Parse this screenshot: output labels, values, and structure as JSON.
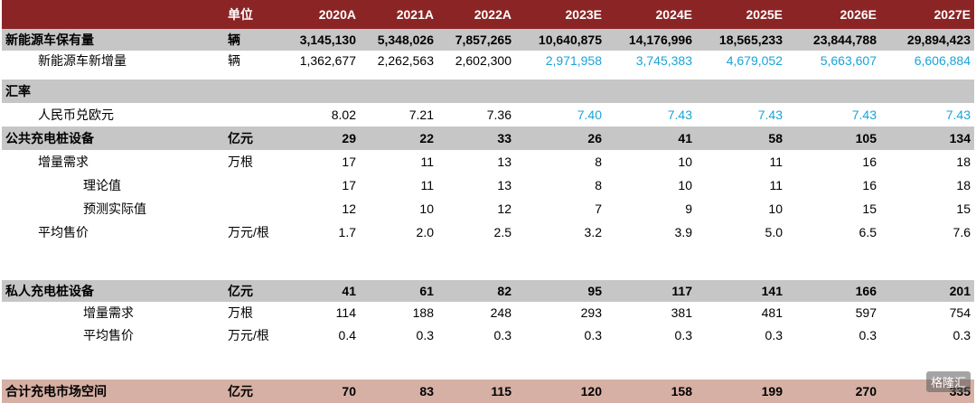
{
  "header": {
    "unit": "单位",
    "years": [
      "2020A",
      "2021A",
      "2022A",
      "2023E",
      "2024E",
      "2025E",
      "2026E",
      "2027E"
    ]
  },
  "rows": {
    "ev_stock": {
      "label": "新能源车保有量",
      "unit": "辆",
      "values": [
        "3,145,130",
        "5,348,026",
        "7,857,265",
        "10,640,875",
        "14,176,996",
        "18,565,233",
        "23,844,788",
        "29,894,423"
      ]
    },
    "ev_new": {
      "label": "新能源车新增量",
      "unit": "辆",
      "values": [
        "1,362,677",
        "2,262,563",
        "2,602,300",
        "2,971,958",
        "3,745,383",
        "4,679,052",
        "5,663,607",
        "6,606,884"
      ]
    },
    "fx": {
      "label": "汇率"
    },
    "cny_eur": {
      "label": "人民币兑欧元",
      "values": [
        "8.02",
        "7.21",
        "7.36",
        "7.40",
        "7.43",
        "7.43",
        "7.43",
        "7.43"
      ]
    },
    "public": {
      "label": "公共充电桩设备",
      "unit": "亿元",
      "values": [
        "29",
        "22",
        "33",
        "26",
        "41",
        "58",
        "105",
        "134"
      ]
    },
    "public_inc": {
      "label": "增量需求",
      "unit": "万根",
      "values": [
        "17",
        "11",
        "13",
        "8",
        "10",
        "11",
        "16",
        "18"
      ]
    },
    "public_theory": {
      "label": "理论值",
      "values": [
        "17",
        "11",
        "13",
        "8",
        "10",
        "11",
        "16",
        "18"
      ]
    },
    "public_actual": {
      "label": "预测实际值",
      "values": [
        "12",
        "10",
        "12",
        "7",
        "9",
        "10",
        "15",
        "15"
      ]
    },
    "public_price": {
      "label": "平均售价",
      "unit": "万元/根",
      "values": [
        "1.7",
        "2.0",
        "2.5",
        "3.2",
        "3.9",
        "5.0",
        "6.5",
        "7.6"
      ]
    },
    "private": {
      "label": "私人充电桩设备",
      "unit": "亿元",
      "values": [
        "41",
        "61",
        "82",
        "95",
        "117",
        "141",
        "166",
        "201"
      ]
    },
    "private_inc": {
      "label": "增量需求",
      "unit": "万根",
      "values": [
        "114",
        "188",
        "248",
        "293",
        "381",
        "481",
        "597",
        "754"
      ]
    },
    "private_price": {
      "label": "平均售价",
      "unit": "万元/根",
      "values": [
        "0.4",
        "0.3",
        "0.3",
        "0.3",
        "0.3",
        "0.3",
        "0.3",
        "0.3"
      ]
    },
    "total": {
      "label": "合计充电市场空间",
      "unit": "亿元",
      "values": [
        "70",
        "83",
        "115",
        "120",
        "158",
        "199",
        "270",
        "335"
      ]
    }
  },
  "watermark": "格隆汇"
}
